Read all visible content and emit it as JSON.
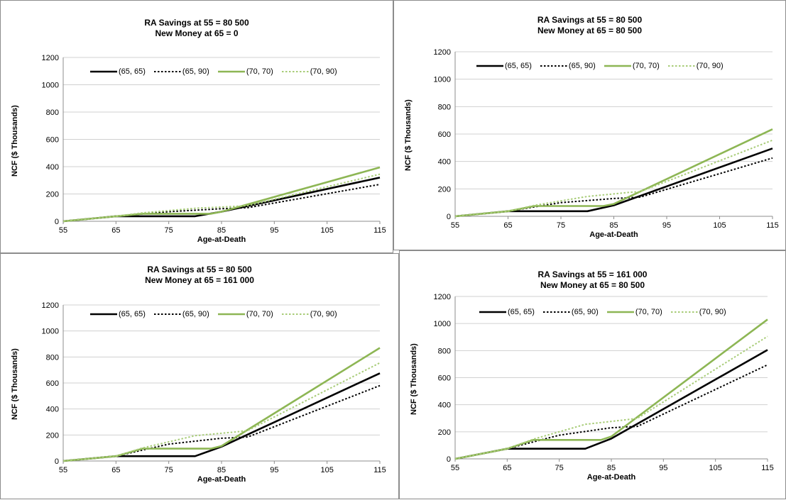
{
  "chart_data": [
    {
      "type": "line",
      "title": [
        "RA Savings at 55 = 80 500",
        "New Money at 65 = 0"
      ],
      "xlabel": "Age-at-Death",
      "ylabel": "NCF ($ Thousands)",
      "xlim": [
        55,
        115
      ],
      "ylim": [
        0,
        1200
      ],
      "x_ticks": [
        55,
        65,
        75,
        85,
        95,
        105,
        115
      ],
      "y_ticks": [
        0,
        200,
        400,
        600,
        800,
        1000,
        1200
      ],
      "grid": true,
      "legend_position": "top",
      "series": [
        {
          "name": "(65, 65)",
          "color": "#000000",
          "style": "solid",
          "points": [
            [
              55,
              0
            ],
            [
              65,
              37
            ],
            [
              80,
              37
            ],
            [
              85,
              70
            ],
            [
              115,
              320
            ]
          ]
        },
        {
          "name": "(65, 90)",
          "color": "#000000",
          "style": "dotted",
          "points": [
            [
              55,
              0
            ],
            [
              65,
              37
            ],
            [
              75,
              70
            ],
            [
              85,
              92
            ],
            [
              90,
              100
            ],
            [
              115,
              270
            ]
          ]
        },
        {
          "name": "(70, 70)",
          "color": "#8db654",
          "style": "solid",
          "points": [
            [
              55,
              0
            ],
            [
              65,
              37
            ],
            [
              70,
              55
            ],
            [
              83,
              55
            ],
            [
              85,
              70
            ],
            [
              115,
              395
            ]
          ]
        },
        {
          "name": "(70, 90)",
          "color": "#a8cc78",
          "style": "dotted",
          "points": [
            [
              55,
              0
            ],
            [
              65,
              37
            ],
            [
              70,
              62
            ],
            [
              80,
              95
            ],
            [
              88,
              110
            ],
            [
              90,
              115
            ],
            [
              115,
              345
            ]
          ]
        }
      ]
    },
    {
      "type": "line",
      "title": [
        "RA Savings at 55 = 80 500",
        "New Money at 65 = 80 500"
      ],
      "xlabel": "Age-at-Death",
      "ylabel": "NCF ($ Thousands)",
      "xlim": [
        55,
        115
      ],
      "ylim": [
        0,
        1200
      ],
      "x_ticks": [
        55,
        65,
        75,
        85,
        95,
        105,
        115
      ],
      "y_ticks": [
        0,
        200,
        400,
        600,
        800,
        1000,
        1200
      ],
      "grid": true,
      "legend_position": "top",
      "series": [
        {
          "name": "(65, 65)",
          "color": "#000000",
          "style": "solid",
          "points": [
            [
              55,
              0
            ],
            [
              65,
              37
            ],
            [
              80,
              37
            ],
            [
              85,
              80
            ],
            [
              115,
              495
            ]
          ]
        },
        {
          "name": "(65, 90)",
          "color": "#000000",
          "style": "dotted",
          "points": [
            [
              55,
              0
            ],
            [
              65,
              37
            ],
            [
              75,
              100
            ],
            [
              85,
              130
            ],
            [
              90,
              140
            ],
            [
              115,
              425
            ]
          ]
        },
        {
          "name": "(70, 70)",
          "color": "#8db654",
          "style": "solid",
          "points": [
            [
              55,
              0
            ],
            [
              65,
              37
            ],
            [
              70,
              75
            ],
            [
              83,
              75
            ],
            [
              85,
              90
            ],
            [
              115,
              635
            ]
          ]
        },
        {
          "name": "(70, 90)",
          "color": "#a8cc78",
          "style": "dotted",
          "points": [
            [
              55,
              0
            ],
            [
              65,
              37
            ],
            [
              70,
              80
            ],
            [
              80,
              145
            ],
            [
              88,
              175
            ],
            [
              90,
              180
            ],
            [
              115,
              555
            ]
          ]
        }
      ]
    },
    {
      "type": "line",
      "title": [
        "RA Savings at 55 = 80 500",
        "New Money at 65 = 161 000"
      ],
      "xlabel": "Age-at-Death",
      "ylabel": "NCF ($ Thousands)",
      "xlim": [
        55,
        115
      ],
      "ylim": [
        0,
        1200
      ],
      "x_ticks": [
        55,
        65,
        75,
        85,
        95,
        105,
        115
      ],
      "y_ticks": [
        0,
        200,
        400,
        600,
        800,
        1000,
        1200
      ],
      "grid": true,
      "legend_position": "top",
      "series": [
        {
          "name": "(65, 65)",
          "color": "#000000",
          "style": "solid",
          "points": [
            [
              55,
              0
            ],
            [
              65,
              37
            ],
            [
              80,
              37
            ],
            [
              85,
              110
            ],
            [
              115,
              675
            ]
          ]
        },
        {
          "name": "(65, 90)",
          "color": "#000000",
          "style": "dotted",
          "points": [
            [
              55,
              0
            ],
            [
              65,
              37
            ],
            [
              75,
              130
            ],
            [
              85,
              175
            ],
            [
              90,
              185
            ],
            [
              115,
              580
            ]
          ]
        },
        {
          "name": "(70, 70)",
          "color": "#8db654",
          "style": "solid",
          "points": [
            [
              55,
              0
            ],
            [
              65,
              37
            ],
            [
              70,
              95
            ],
            [
              83,
              95
            ],
            [
              85,
              115
            ],
            [
              115,
              870
            ]
          ]
        },
        {
          "name": "(70, 90)",
          "color": "#a8cc78",
          "style": "dotted",
          "points": [
            [
              55,
              0
            ],
            [
              65,
              37
            ],
            [
              70,
              100
            ],
            [
              80,
              195
            ],
            [
              88,
              225
            ],
            [
              90,
              235
            ],
            [
              115,
              755
            ]
          ]
        }
      ]
    },
    {
      "type": "line",
      "title": [
        "RA Savings at 55 = 161 000",
        "New Money at 65 = 80 500"
      ],
      "xlabel": "Age-at-Death",
      "ylabel": "NCF ($ Thousands)",
      "xlim": [
        55,
        115
      ],
      "ylim": [
        0,
        1200
      ],
      "x_ticks": [
        55,
        65,
        75,
        85,
        95,
        105,
        115
      ],
      "y_ticks": [
        0,
        200,
        400,
        600,
        800,
        1000,
        1200
      ],
      "grid": true,
      "legend_position": "top",
      "series": [
        {
          "name": "(65, 65)",
          "color": "#000000",
          "style": "solid",
          "points": [
            [
              55,
              0
            ],
            [
              65,
              75
            ],
            [
              80,
              75
            ],
            [
              85,
              150
            ],
            [
              115,
              805
            ]
          ]
        },
        {
          "name": "(65, 90)",
          "color": "#000000",
          "style": "dotted",
          "points": [
            [
              55,
              0
            ],
            [
              65,
              75
            ],
            [
              75,
              175
            ],
            [
              85,
              230
            ],
            [
              90,
              240
            ],
            [
              115,
              695
            ]
          ]
        },
        {
          "name": "(70, 70)",
          "color": "#8db654",
          "style": "solid",
          "points": [
            [
              55,
              0
            ],
            [
              65,
              75
            ],
            [
              70,
              140
            ],
            [
              83,
              140
            ],
            [
              85,
              165
            ],
            [
              115,
              1030
            ]
          ]
        },
        {
          "name": "(70, 90)",
          "color": "#a8cc78",
          "style": "dotted",
          "points": [
            [
              55,
              0
            ],
            [
              65,
              75
            ],
            [
              70,
              145
            ],
            [
              80,
              255
            ],
            [
              88,
              290
            ],
            [
              90,
              300
            ],
            [
              115,
              905
            ]
          ]
        }
      ]
    }
  ]
}
